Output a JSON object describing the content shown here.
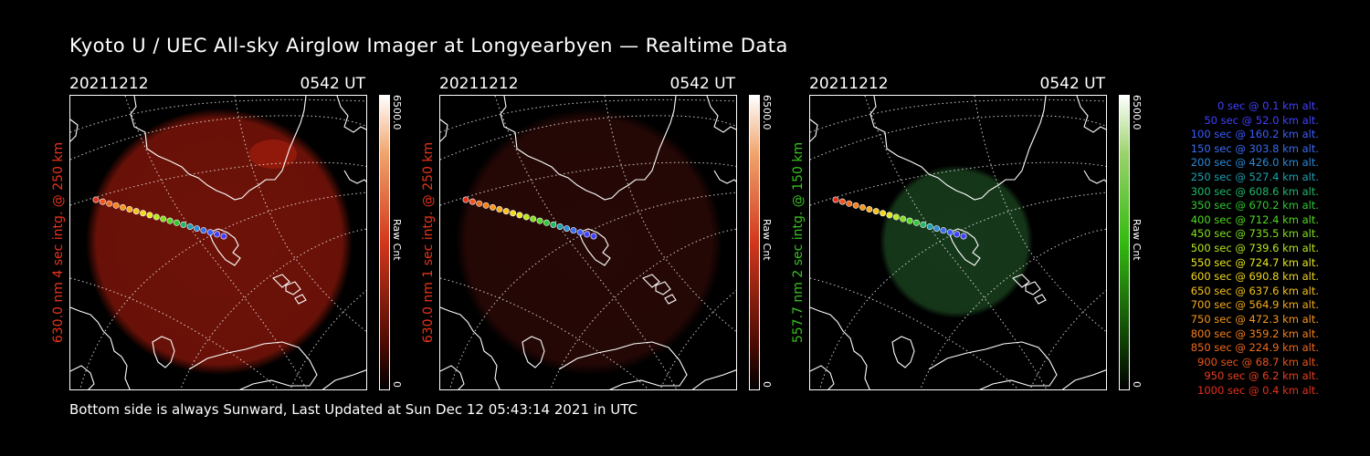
{
  "title": "Kyoto U / UEC All-sky Airglow Imager at Longyearbyen — Realtime Data",
  "footer": "Bottom side is always Sunward, Last Updated at Sun Dec 12 05:43:14 2021 in UTC",
  "panels": [
    {
      "date": "20211212",
      "time": "0542 UT",
      "ylabel": "630.0 nm 4 sec intg. @ 250 km",
      "label_color": "#e8331d",
      "colorbar": {
        "max": "6500.0",
        "min": "0",
        "unit": "Raw Cnt",
        "color": "#d2371c"
      }
    },
    {
      "date": "20211212",
      "time": "0542 UT",
      "ylabel": "630.0 nm 1 sec intg. @ 250 km",
      "label_color": "#e8331d",
      "colorbar": {
        "max": "6500.0",
        "min": "0",
        "unit": "Raw Cnt",
        "color": "#d2371c"
      }
    },
    {
      "date": "20211212",
      "time": "0542 UT",
      "ylabel": "557.7 nm 2 sec intg. @ 150 km",
      "label_color": "#37c21f",
      "colorbar": {
        "max": "6500.0",
        "min": "0",
        "unit": "Raw Cnt",
        "color": "#33bb11"
      }
    }
  ],
  "legend": [
    {
      "text": "0 sec @   0.1 km alt.",
      "color": "#4040ff"
    },
    {
      "text": "50 sec @  52.0 km alt.",
      "color": "#4040ff"
    },
    {
      "text": "100 sec @ 160.2 km alt.",
      "color": "#3a5cff"
    },
    {
      "text": "150 sec @ 303.8 km alt.",
      "color": "#3a6cf0"
    },
    {
      "text": "200 sec @ 426.0 km alt.",
      "color": "#2c8ad8"
    },
    {
      "text": "250 sec @ 527.4 km alt.",
      "color": "#1fa0b0"
    },
    {
      "text": "300 sec @ 608.6 km alt.",
      "color": "#1fb86a"
    },
    {
      "text": "350 sec @ 670.2 km alt.",
      "color": "#30c830"
    },
    {
      "text": "400 sec @ 712.4 km alt.",
      "color": "#52d820"
    },
    {
      "text": "450 sec @ 735.5 km alt.",
      "color": "#80e020"
    },
    {
      "text": "500 sec @ 739.6 km alt.",
      "color": "#b8e81e"
    },
    {
      "text": "550 sec @ 724.7 km alt.",
      "color": "#e8e820"
    },
    {
      "text": "600 sec @ 690.8 km alt.",
      "color": "#f0d81e"
    },
    {
      "text": "650 sec @ 637.6 km alt.",
      "color": "#f5c21c"
    },
    {
      "text": "700 sec @ 564.9 km alt.",
      "color": "#f5ac1c"
    },
    {
      "text": "750 sec @ 472.3 km alt.",
      "color": "#f5961c"
    },
    {
      "text": "800 sec @ 359.2 km alt.",
      "color": "#f5801c"
    },
    {
      "text": "850 sec @ 224.9 km alt.",
      "color": "#f06a1c"
    },
    {
      "text": "900 sec @  68.7 km alt.",
      "color": "#ec541c"
    },
    {
      "text": "950 sec @   6.2 km alt.",
      "color": "#e8401c"
    },
    {
      "text": "1000 sec @   0.4 km alt.",
      "color": "#e4301c"
    }
  ],
  "glow_colors": [
    "#6e1208",
    "#260806",
    "#16381a"
  ]
}
